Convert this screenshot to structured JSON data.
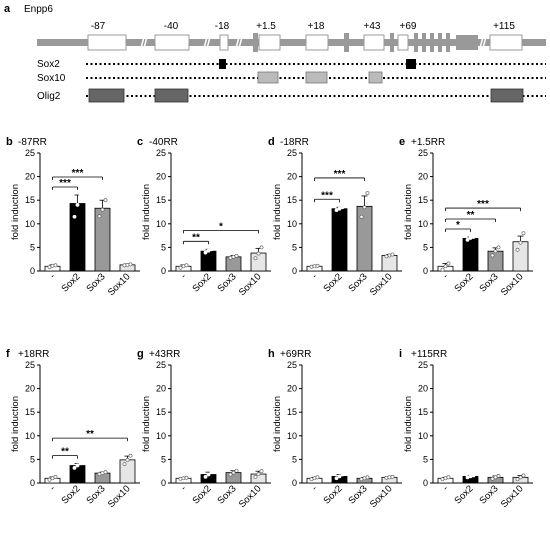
{
  "panel_a": {
    "letter": "a",
    "gene": "Enpp6",
    "region_labels": [
      "-87",
      "-40",
      "-18",
      "+1.5",
      "+18",
      "+43",
      "+69",
      "+115"
    ],
    "track_labels": [
      "Sox2",
      "Sox10",
      "Olig2"
    ],
    "colors": {
      "gene_line": "#999999",
      "exon": "#999999",
      "sox2_site": "#000000",
      "sox10_site": "#bbbbbb",
      "olig2_site": "#666666"
    }
  },
  "chart_data": [
    {
      "type": "bar",
      "letter": "b",
      "title": "-87RR",
      "ylabel": "fold induction",
      "ylim": [
        0,
        25
      ],
      "yticks": [
        0,
        5,
        10,
        15,
        20,
        25
      ],
      "categories": [
        "-",
        "Sox2",
        "Sox3",
        "Sox10"
      ],
      "values": [
        1.0,
        14.3,
        13.3,
        1.3
      ],
      "errors": [
        0.3,
        1.8,
        1.7,
        0.2
      ],
      "points": [
        [
          0.8,
          1.1,
          1.2
        ],
        [
          11.5,
          14.0,
          16.0
        ],
        [
          11.6,
          13.0,
          15.0
        ],
        [
          1.2,
          1.3,
          1.4
        ]
      ],
      "significance": [
        {
          "from": 0,
          "to": 1,
          "label": "***"
        },
        {
          "from": 0,
          "to": 2,
          "label": "***"
        }
      ]
    },
    {
      "type": "bar",
      "letter": "c",
      "title": "-40RR",
      "ylabel": "fold induction",
      "ylim": [
        0,
        25
      ],
      "yticks": [
        0,
        5,
        10,
        15,
        20,
        25
      ],
      "categories": [
        "-",
        "Sox2",
        "Sox3",
        "Sox10"
      ],
      "values": [
        1.0,
        4.2,
        3.0,
        3.8
      ],
      "errors": [
        0.3,
        0.4,
        0.3,
        1.0
      ],
      "points": [
        [
          0.7,
          1.0,
          1.2
        ],
        [
          3.9,
          4.3,
          4.6
        ],
        [
          2.8,
          3.0,
          3.2
        ],
        [
          2.7,
          3.7,
          5.0
        ]
      ],
      "significance": [
        {
          "from": 0,
          "to": 1,
          "label": "**"
        },
        {
          "from": 0,
          "to": 3,
          "label": "*"
        }
      ]
    },
    {
      "type": "bar",
      "letter": "d",
      "title": "-18RR",
      "ylabel": "fold induction",
      "ylim": [
        0,
        25
      ],
      "yticks": [
        0,
        5,
        10,
        15,
        20,
        25
      ],
      "categories": [
        "-",
        "Sox2",
        "Sox3",
        "Sox10"
      ],
      "values": [
        1.0,
        13.2,
        13.7,
        3.3
      ],
      "errors": [
        0.2,
        0.3,
        2.2,
        0.2
      ],
      "points": [
        [
          0.9,
          1.0,
          1.1
        ],
        [
          12.9,
          13.2,
          13.5
        ],
        [
          11.5,
          13.5,
          16.5
        ],
        [
          3.1,
          3.3,
          3.5
        ]
      ],
      "significance": [
        {
          "from": 0,
          "to": 1,
          "label": "***"
        },
        {
          "from": 0,
          "to": 2,
          "label": "***"
        }
      ]
    },
    {
      "type": "bar",
      "letter": "e",
      "title": "+1.5RR",
      "ylabel": "fold induction",
      "ylim": [
        0,
        25
      ],
      "yticks": [
        0,
        5,
        10,
        15,
        20,
        25
      ],
      "categories": [
        "-",
        "Sox2",
        "Sox3",
        "Sox10"
      ],
      "values": [
        1.0,
        6.9,
        4.2,
        6.2
      ],
      "errors": [
        0.6,
        0.3,
        0.7,
        1.2
      ],
      "points": [
        [
          0.3,
          1.0,
          1.6
        ],
        [
          6.6,
          7.0,
          7.2
        ],
        [
          3.3,
          4.2,
          5.0
        ],
        [
          4.5,
          6.0,
          8.0
        ]
      ],
      "significance": [
        {
          "from": 0,
          "to": 1,
          "label": "*"
        },
        {
          "from": 0,
          "to": 2,
          "label": "**"
        },
        {
          "from": 0,
          "to": 3,
          "label": "***"
        }
      ]
    },
    {
      "type": "bar",
      "letter": "f",
      "title": "+18RR",
      "ylabel": "fold induction",
      "ylim": [
        0,
        25
      ],
      "yticks": [
        0,
        5,
        10,
        15,
        20,
        25
      ],
      "categories": [
        "-",
        "Sox2",
        "Sox3",
        "Sox10"
      ],
      "values": [
        1.0,
        3.7,
        2.1,
        4.9
      ],
      "errors": [
        0.3,
        0.4,
        0.2,
        0.8
      ],
      "points": [
        [
          0.7,
          1.0,
          1.3
        ],
        [
          3.2,
          3.7,
          4.3
        ],
        [
          1.9,
          2.1,
          2.3
        ],
        [
          4.0,
          4.9,
          5.8
        ]
      ],
      "significance": [
        {
          "from": 0,
          "to": 1,
          "label": "**"
        },
        {
          "from": 0,
          "to": 3,
          "label": "**"
        }
      ]
    },
    {
      "type": "bar",
      "letter": "g",
      "title": "+43RR",
      "ylabel": "fold induction",
      "ylim": [
        0,
        25
      ],
      "yticks": [
        0,
        5,
        10,
        15,
        20,
        25
      ],
      "categories": [
        "-",
        "Sox2",
        "Sox3",
        "Sox10"
      ],
      "values": [
        1.0,
        1.8,
        2.2,
        1.9
      ],
      "errors": [
        0.1,
        0.5,
        0.4,
        0.6
      ],
      "points": [
        [
          0.9,
          1.0,
          1.1
        ],
        [
          1.3,
          1.8,
          2.3
        ],
        [
          1.8,
          2.2,
          2.6
        ],
        [
          1.3,
          1.9,
          2.5
        ]
      ],
      "significance": []
    },
    {
      "type": "bar",
      "letter": "h",
      "title": "+69RR",
      "ylabel": "fold induction",
      "ylim": [
        0,
        25
      ],
      "yticks": [
        0,
        5,
        10,
        15,
        20,
        25
      ],
      "categories": [
        "-",
        "Sox2",
        "Sox3",
        "Sox10"
      ],
      "values": [
        1.0,
        1.4,
        1.0,
        1.2
      ],
      "errors": [
        0.2,
        0.4,
        0.2,
        0.1
      ],
      "points": [
        [
          0.8,
          1.0,
          1.2
        ],
        [
          1.0,
          1.4,
          1.8
        ],
        [
          0.8,
          1.0,
          1.2
        ],
        [
          1.1,
          1.2,
          1.3
        ]
      ],
      "significance": []
    },
    {
      "type": "bar",
      "letter": "i",
      "title": "+115RR",
      "ylabel": "fold induction",
      "ylim": [
        0,
        25
      ],
      "yticks": [
        0,
        5,
        10,
        15,
        20,
        25
      ],
      "categories": [
        "-",
        "Sox2",
        "Sox3",
        "Sox10"
      ],
      "values": [
        1.0,
        1.4,
        1.2,
        1.2
      ],
      "errors": [
        0.2,
        0.2,
        0.3,
        0.4
      ],
      "points": [
        [
          0.8,
          1.0,
          1.2
        ],
        [
          1.2,
          1.4,
          1.6
        ],
        [
          0.9,
          1.2,
          1.5
        ],
        [
          0.8,
          1.2,
          1.6
        ]
      ],
      "significance": []
    }
  ],
  "bar_colors": [
    "#ffffff",
    "#000000",
    "#999999",
    "#e6e6e6"
  ]
}
